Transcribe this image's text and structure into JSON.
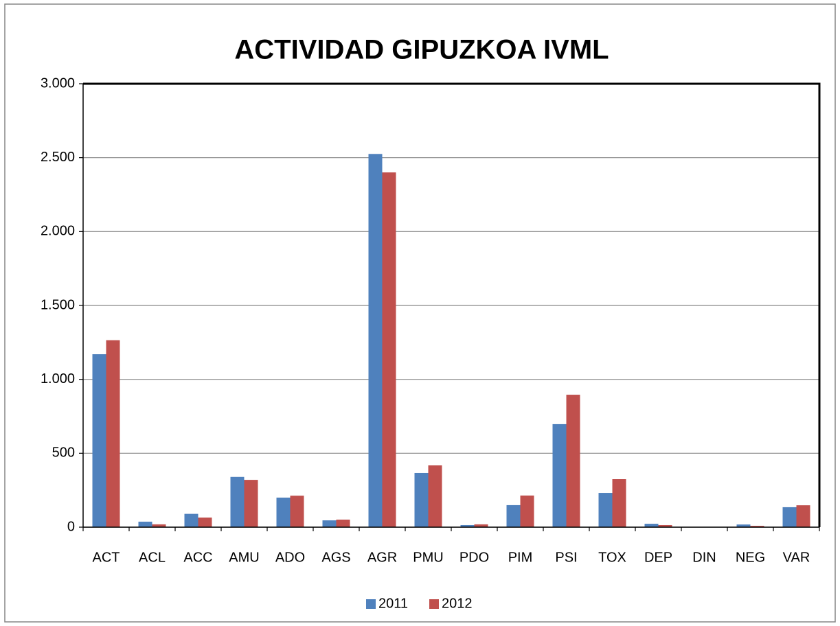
{
  "chart_data": {
    "type": "bar",
    "title": "ACTIVIDAD GIPUZKOA IVML",
    "categories": [
      "ACT",
      "ACL",
      "ACC",
      "AMU",
      "ADO",
      "AGS",
      "AGR",
      "PMU",
      "PDO",
      "PIM",
      "PSI",
      "TOX",
      "DEP",
      "DIN",
      "NEG",
      "VAR"
    ],
    "series": [
      {
        "name": "2011",
        "color": "#4f81bd",
        "values": [
          1170,
          37,
          90,
          340,
          200,
          46,
          2525,
          367,
          14,
          149,
          697,
          232,
          23,
          0,
          18,
          135
        ]
      },
      {
        "name": "2012",
        "color": "#c0504d",
        "values": [
          1265,
          19,
          65,
          320,
          213,
          51,
          2400,
          418,
          19,
          214,
          896,
          325,
          14,
          0,
          9,
          148
        ]
      }
    ],
    "ylim": [
      0,
      3000
    ],
    "yticks": [
      0,
      500,
      {
        "value": 1000,
        "label": "1.000"
      },
      {
        "value": 1500,
        "label": "1.500"
      },
      {
        "value": 2000,
        "label": "2.000"
      },
      {
        "value": 2500,
        "label": "2.500"
      },
      {
        "value": 3000,
        "label": "3.000"
      }
    ],
    "grid": true,
    "legend": "bottom"
  }
}
